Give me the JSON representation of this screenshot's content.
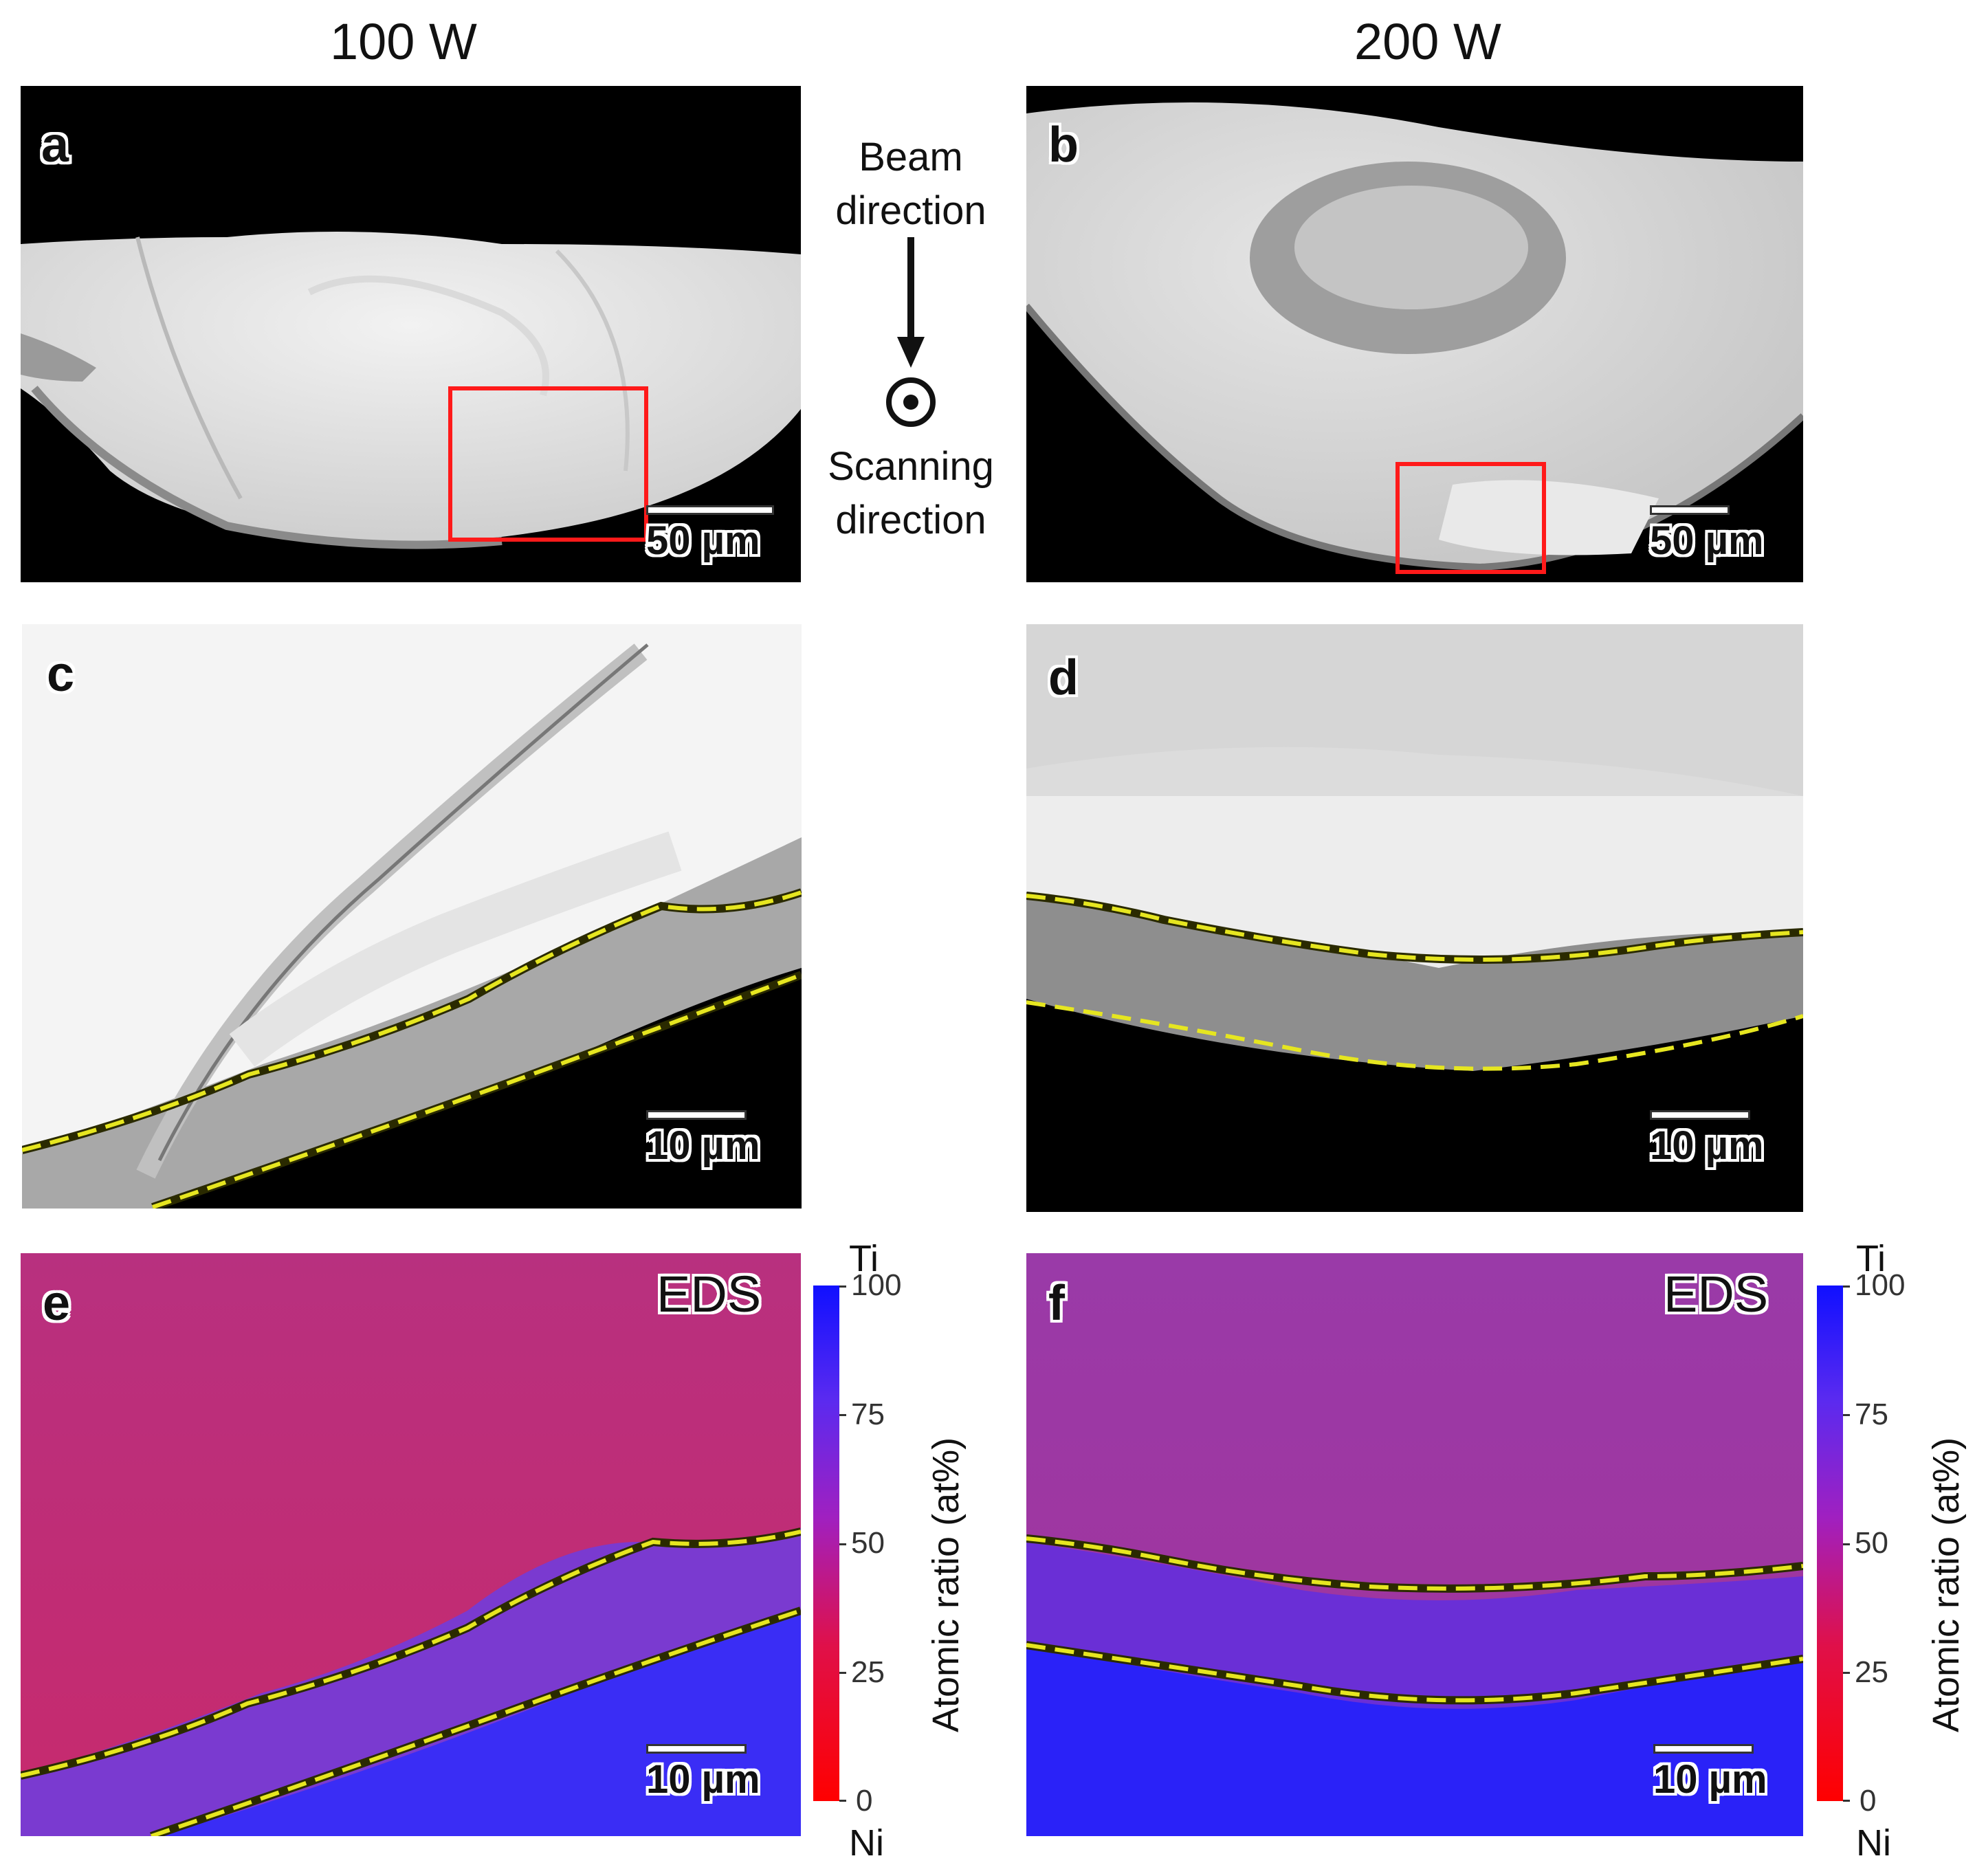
{
  "columns": {
    "left_title": "100 W",
    "right_title": "200 W"
  },
  "panels": {
    "a": {
      "label": "a",
      "scale": "50 µm"
    },
    "b": {
      "label": "b",
      "scale": "50 µm"
    },
    "c": {
      "label": "c",
      "scale": "10 µm"
    },
    "d": {
      "label": "d",
      "scale": "10 µm"
    },
    "e": {
      "label": "e",
      "scale": "10 µm",
      "tag": "EDS"
    },
    "f": {
      "label": "f",
      "scale": "10 µm",
      "tag": "EDS"
    }
  },
  "direction": {
    "beam_line1": "Beam",
    "beam_line2": "direction",
    "scan_line1": "Scanning",
    "scan_line2": "direction"
  },
  "colorbar": {
    "top": "Ti",
    "bottom": "Ni",
    "title": "Atomic ratio (at%)",
    "ticks": [
      "100",
      "75",
      "50",
      "25",
      "0"
    ],
    "colors": {
      "low": "#ff0000",
      "high": "#1010ff"
    }
  }
}
